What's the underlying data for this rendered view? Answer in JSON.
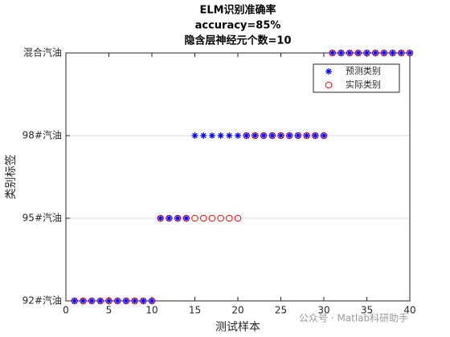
{
  "chart_data": {
    "type": "scatter",
    "title": [
      "ELM识别准确率",
      "accuracy=85%",
      "隐含层神经元个数=10"
    ],
    "xlabel": "测试样本",
    "ylabel": "类别标签",
    "x": [
      1,
      2,
      3,
      4,
      5,
      6,
      7,
      8,
      9,
      10,
      11,
      12,
      13,
      14,
      15,
      16,
      17,
      18,
      19,
      20,
      21,
      22,
      23,
      24,
      25,
      26,
      27,
      28,
      29,
      30,
      31,
      32,
      33,
      34,
      35,
      36,
      37,
      38,
      39,
      40
    ],
    "series": [
      {
        "name": "预测类别",
        "color": "#0000ff",
        "marker": "asterisk",
        "values": [
          1,
          1,
          1,
          1,
          1,
          1,
          1,
          1,
          1,
          1,
          2,
          2,
          2,
          2,
          3,
          3,
          3,
          3,
          3,
          3,
          3,
          3,
          3,
          3,
          3,
          3,
          3,
          3,
          3,
          3,
          4,
          4,
          4,
          4,
          4,
          4,
          4,
          4,
          4,
          4
        ]
      },
      {
        "name": "实际类别",
        "color": "#ff0000",
        "marker": "circle",
        "values": [
          1,
          1,
          1,
          1,
          1,
          1,
          1,
          1,
          1,
          1,
          2,
          2,
          2,
          2,
          2,
          2,
          2,
          2,
          2,
          2,
          3,
          3,
          3,
          3,
          3,
          3,
          3,
          3,
          3,
          3,
          4,
          4,
          4,
          4,
          4,
          4,
          4,
          4,
          4,
          4
        ]
      }
    ],
    "xlim": [
      0,
      40
    ],
    "xticks": [
      0,
      5,
      10,
      15,
      20,
      25,
      30,
      35,
      40
    ],
    "ylim": [
      1,
      4
    ],
    "yticks": [
      {
        "value": 1,
        "label": "92#汽油"
      },
      {
        "value": 2,
        "label": "95#汽油"
      },
      {
        "value": 3,
        "label": "98#汽油"
      },
      {
        "value": 4,
        "label": "混合汽油"
      }
    ],
    "ygrid": true,
    "legend": "northeast",
    "watermark": "公众号 · Matlab科研助手"
  }
}
